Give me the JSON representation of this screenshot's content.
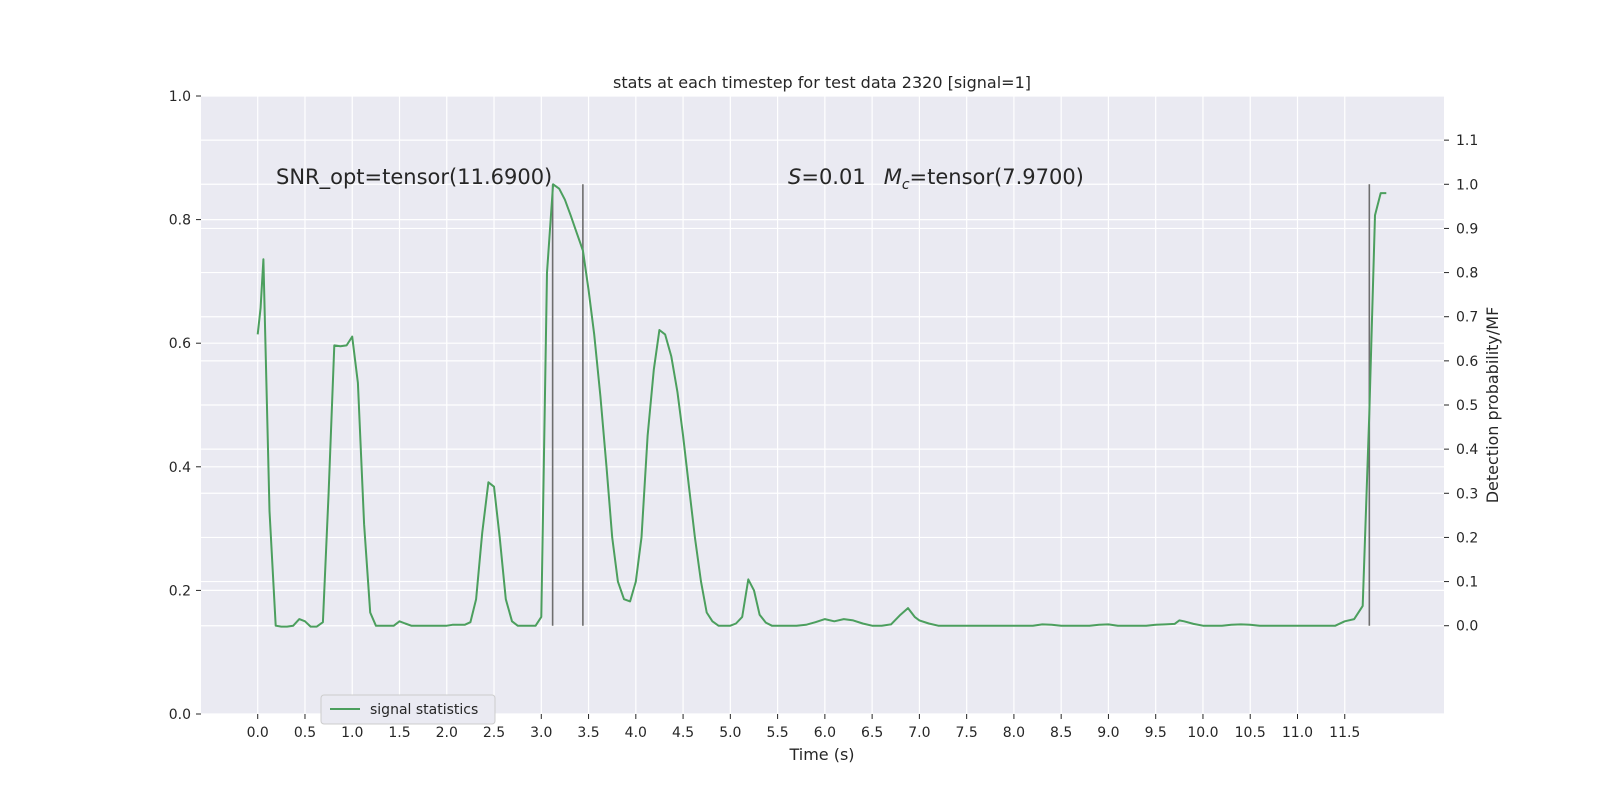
{
  "chart_data": {
    "type": "line",
    "title": "stats at each timestep for test data 2320 [signal=1]",
    "xlabel": "Time (s)",
    "ylabel_left": "",
    "ylabel_right": "Detection probability/MF",
    "xlim": [
      -0.6,
      12.55
    ],
    "ylim_left": [
      0,
      1
    ],
    "ylim_right": [
      -0.2,
      1.2
    ],
    "x_ticks": [
      "0.0",
      "0.5",
      "1.0",
      "1.5",
      "2.0",
      "2.5",
      "3.0",
      "3.5",
      "4.0",
      "4.5",
      "5.0",
      "5.5",
      "6.0",
      "6.5",
      "7.0",
      "7.5",
      "8.0",
      "8.5",
      "9.0",
      "9.5",
      "10.0",
      "10.5",
      "11.0",
      "11.5"
    ],
    "y_left_ticks": [
      "0.0",
      "0.2",
      "0.4",
      "0.6",
      "0.8",
      "1.0"
    ],
    "y_right_ticks": [
      "0.0",
      "0.1",
      "0.2",
      "0.3",
      "0.4",
      "0.5",
      "0.6",
      "0.7",
      "0.8",
      "0.9",
      "1.0",
      "1.1"
    ],
    "grid": true,
    "legend": {
      "position": "lower-left",
      "entries": [
        "signal statistics"
      ]
    },
    "annotations": {
      "snr": "SNR_opt=tensor(11.6900)",
      "s_label": "S",
      "s_value": "=0.01",
      "m_label": "M",
      "m_sub": "c",
      "m_value": "=tensor(7.9700)"
    },
    "vlines": [
      {
        "x": 3.12,
        "ymin": 0.0,
        "ymax": 1.0
      },
      {
        "x": 3.44,
        "ymin": 0.0,
        "ymax": 1.0
      },
      {
        "x": 11.76,
        "ymin": 0.0,
        "ymax": 1.0
      }
    ],
    "series": [
      {
        "name": "signal statistics",
        "axis": "right",
        "color": "#4c9f5e",
        "x": [
          0.0,
          0.03,
          0.06,
          0.125,
          0.19,
          0.25,
          0.31,
          0.375,
          0.44,
          0.5,
          0.56,
          0.625,
          0.69,
          0.75,
          0.81,
          0.875,
          0.94,
          1.0,
          1.06,
          1.125,
          1.19,
          1.25,
          1.31,
          1.375,
          1.44,
          1.5,
          1.56,
          1.625,
          1.69,
          1.75,
          1.81,
          1.875,
          1.94,
          2.0,
          2.06,
          2.125,
          2.19,
          2.25,
          2.31,
          2.375,
          2.44,
          2.5,
          2.56,
          2.625,
          2.69,
          2.75,
          2.81,
          2.875,
          2.94,
          3.0,
          3.06,
          3.125,
          3.19,
          3.25,
          3.31,
          3.375,
          3.44,
          3.5,
          3.56,
          3.625,
          3.69,
          3.75,
          3.81,
          3.875,
          3.94,
          4.0,
          4.06,
          4.125,
          4.19,
          4.25,
          4.31,
          4.375,
          4.44,
          4.5,
          4.56,
          4.625,
          4.69,
          4.75,
          4.81,
          4.875,
          4.94,
          5.0,
          5.06,
          5.125,
          5.19,
          5.25,
          5.31,
          5.375,
          5.44,
          5.5,
          5.6,
          5.7,
          5.8,
          5.9,
          6.0,
          6.1,
          6.2,
          6.3,
          6.4,
          6.5,
          6.6,
          6.7,
          6.8,
          6.88,
          6.95,
          7.0,
          7.1,
          7.2,
          7.3,
          7.4,
          7.5,
          7.6,
          7.7,
          7.8,
          7.9,
          8.0,
          8.1,
          8.2,
          8.3,
          8.4,
          8.5,
          8.6,
          8.7,
          8.8,
          8.9,
          9.0,
          9.1,
          9.2,
          9.3,
          9.4,
          9.5,
          9.6,
          9.7,
          9.75,
          9.8,
          9.9,
          10.0,
          10.1,
          10.2,
          10.3,
          10.4,
          10.5,
          10.6,
          10.7,
          10.8,
          10.9,
          11.0,
          11.1,
          11.2,
          11.3,
          11.4,
          11.5,
          11.6,
          11.69,
          11.76,
          11.82,
          11.88,
          11.94
        ],
        "y": [
          0.66,
          0.72,
          0.83,
          0.26,
          0.0,
          -0.002,
          -0.002,
          0.0,
          0.015,
          0.01,
          -0.002,
          -0.002,
          0.008,
          0.3,
          0.635,
          0.633,
          0.635,
          0.655,
          0.55,
          0.23,
          0.03,
          0.0,
          0.0,
          0.0,
          0.0,
          0.01,
          0.005,
          0.0,
          0.0,
          0.0,
          0.0,
          0.0,
          0.0,
          0.0,
          0.002,
          0.002,
          0.002,
          0.008,
          0.06,
          0.21,
          0.325,
          0.315,
          0.2,
          0.06,
          0.01,
          0.0,
          0.0,
          0.0,
          0.0,
          0.02,
          0.8,
          1.0,
          0.99,
          0.965,
          0.93,
          0.89,
          0.85,
          0.76,
          0.66,
          0.52,
          0.36,
          0.2,
          0.1,
          0.06,
          0.055,
          0.1,
          0.2,
          0.43,
          0.58,
          0.67,
          0.66,
          0.61,
          0.53,
          0.43,
          0.32,
          0.2,
          0.1,
          0.03,
          0.01,
          0.0,
          0.0,
          0.0,
          0.005,
          0.02,
          0.105,
          0.08,
          0.025,
          0.007,
          0.0,
          0.0,
          0.0,
          0.0,
          0.002,
          0.008,
          0.015,
          0.01,
          0.015,
          0.012,
          0.005,
          0.0,
          0.0,
          0.003,
          0.025,
          0.04,
          0.02,
          0.012,
          0.005,
          0.0,
          0.0,
          0.0,
          0.0,
          0.0,
          0.0,
          0.0,
          0.0,
          0.0,
          0.0,
          0.0,
          0.003,
          0.002,
          0.0,
          0.0,
          0.0,
          0.0,
          0.002,
          0.003,
          0.0,
          0.0,
          0.0,
          0.0,
          0.002,
          0.003,
          0.004,
          0.012,
          0.01,
          0.004,
          0.0,
          0.0,
          0.0,
          0.002,
          0.003,
          0.002,
          0.0,
          0.0,
          0.0,
          0.0,
          0.0,
          0.0,
          0.0,
          0.0,
          0.0,
          0.01,
          0.015,
          0.045,
          0.48,
          0.93,
          0.98,
          0.98
        ]
      }
    ]
  }
}
